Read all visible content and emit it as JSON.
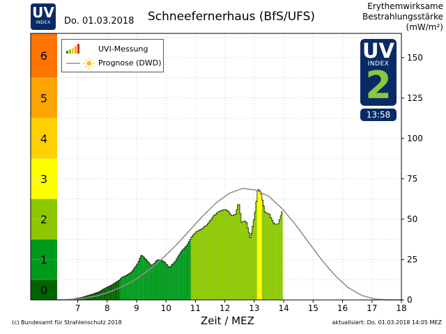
{
  "header": {
    "logo_uv": "UV",
    "logo_index": "INDEX",
    "date": "Do. 01.03.2018",
    "title": "Schneefernerhaus (BfS/UFS)",
    "unit_line1": "Erythemwirksame",
    "unit_line2": "Bestrahlungsstärke",
    "unit_line3": "(mW/m²)"
  },
  "legend": {
    "measurement": "UVI-Messung",
    "forecast": "Prognose (DWD)"
  },
  "badge": {
    "uv": "UV",
    "index": "INDEX",
    "value": "2",
    "time": "13:58",
    "value_color": "#8dc63f",
    "bg_color": "#0a2a66"
  },
  "footer": {
    "xlabel": "Zeit / MEZ",
    "copyright": "(c) Bundesamt für Strahlenschutz 2018",
    "updated": "aktualisiert: Do. 01.03.2018  14:05  MEZ"
  },
  "chart_data": {
    "type": "bar",
    "title": "Schneefernerhaus (BfS/UFS)",
    "xlabel": "Zeit / MEZ",
    "ylabel": "Erythemwirksame Bestrahlungsstärke (mW/m²)",
    "xlim": [
      6.3,
      18
    ],
    "ylim": [
      0,
      165
    ],
    "x_ticks": [
      "7",
      "8",
      "9",
      "10",
      "11",
      "12",
      "13",
      "14",
      "15",
      "16",
      "17",
      "18"
    ],
    "y_ticks": [
      "0",
      "25",
      "50",
      "75",
      "100",
      "125",
      "150"
    ],
    "uvi_scale": [
      {
        "label": "0",
        "from": 0,
        "to": 12.5,
        "color": "#006400"
      },
      {
        "label": "1",
        "from": 12.5,
        "to": 37.5,
        "color": "#009a1b"
      },
      {
        "label": "2",
        "from": 37.5,
        "to": 62.5,
        "color": "#8cc800"
      },
      {
        "label": "3",
        "from": 62.5,
        "to": 87.5,
        "color": "#ffff00"
      },
      {
        "label": "4",
        "from": 87.5,
        "to": 112.5,
        "color": "#ffd000"
      },
      {
        "label": "5",
        "from": 112.5,
        "to": 137.5,
        "color": "#ffa500"
      },
      {
        "label": "6",
        "from": 137.5,
        "to": 165,
        "color": "#ff7300"
      }
    ],
    "grid": true,
    "legend_position": "top-left",
    "measurement": {
      "x": [
        6.8,
        7.1,
        7.4,
        7.7,
        8.0,
        8.3,
        8.5,
        8.8,
        9.0,
        9.15,
        9.3,
        9.5,
        9.7,
        9.9,
        10.1,
        10.3,
        10.5,
        10.7,
        10.85,
        11.0,
        11.2,
        11.4,
        11.6,
        11.8,
        12.0,
        12.1,
        12.2,
        12.35,
        12.45,
        12.55,
        12.7,
        12.85,
        13.0,
        13.1,
        13.2,
        13.35,
        13.5,
        13.65,
        13.8,
        13.95
      ],
      "y": [
        0.5,
        1.5,
        3,
        5,
        8,
        11,
        14,
        17,
        22,
        28,
        25,
        21,
        25,
        24,
        20,
        24,
        30,
        34,
        39,
        42,
        44,
        47,
        52,
        55,
        56,
        55,
        52,
        53,
        61,
        48,
        49,
        38,
        53,
        69,
        67,
        54,
        53,
        47,
        47,
        56
      ]
    },
    "forecast": {
      "x": [
        6.3,
        6.75,
        7.2,
        7.65,
        8.1,
        8.55,
        9.0,
        9.45,
        9.9,
        10.35,
        10.8,
        11.25,
        11.7,
        12.15,
        12.6,
        13.05,
        13.5,
        13.95,
        14.4,
        14.85,
        15.3,
        15.75,
        16.2,
        16.65,
        17.1,
        17.55,
        18.0
      ],
      "y": [
        0,
        0.3,
        1,
        2.5,
        5,
        8.5,
        13,
        19,
        26,
        34,
        43,
        52,
        60,
        66,
        69,
        68,
        64,
        56.5,
        46.6,
        35.5,
        24.5,
        15,
        7.5,
        2.8,
        0.5,
        0,
        0
      ]
    },
    "colors": {
      "forecast": "#909090",
      "measurement_outline": "#000000"
    }
  }
}
